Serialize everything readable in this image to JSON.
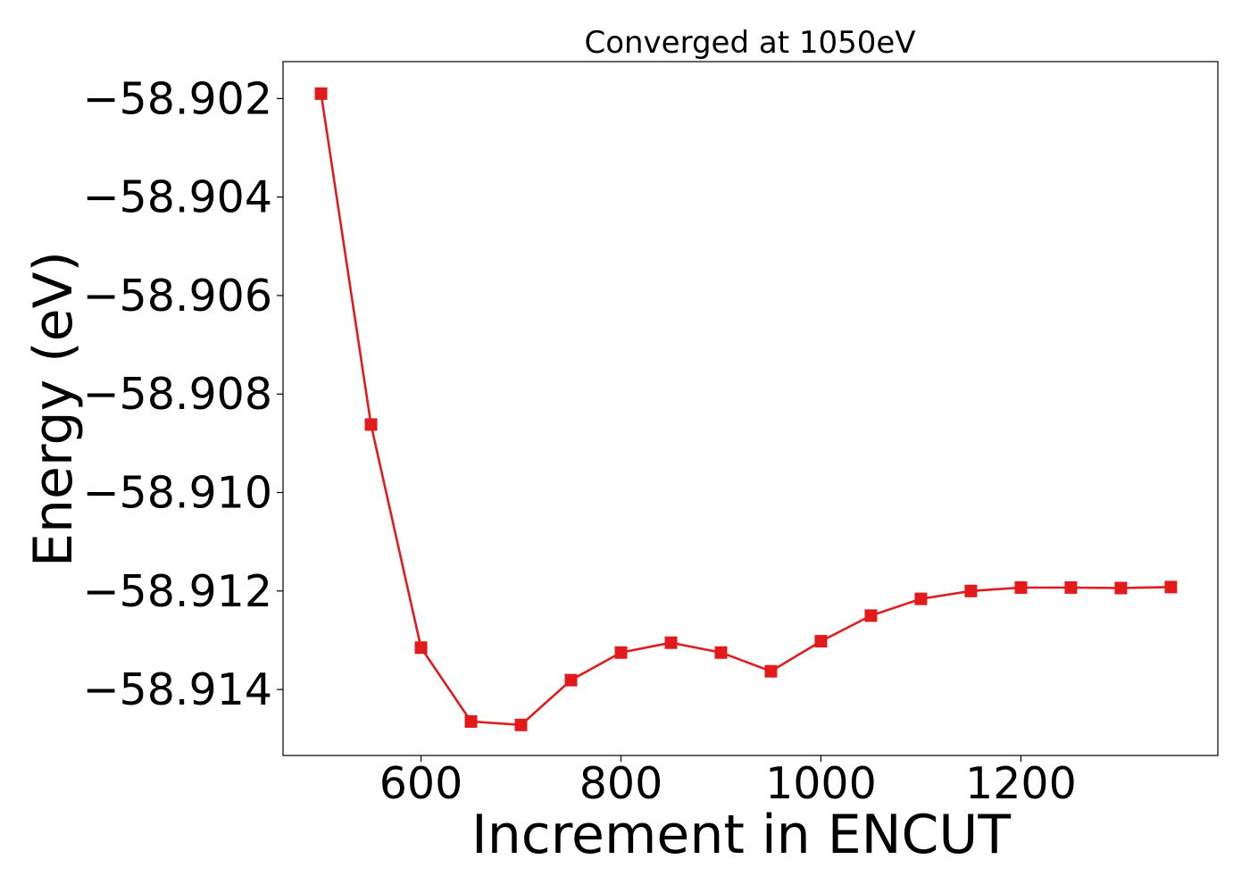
{
  "chart_data": {
    "type": "line",
    "title": "Converged at 1050eV",
    "xlabel": "Increment in ENCUT",
    "ylabel": "Energy (eV)",
    "xlim": [
      462,
      1397
    ],
    "ylim": [
      -58.91534,
      -58.90125
    ],
    "x_ticks": [
      600,
      800,
      1000,
      1200
    ],
    "x_tick_labels": [
      "600",
      "800",
      "1000",
      "1200"
    ],
    "y_ticks": [
      -58.902,
      -58.904,
      -58.906,
      -58.908,
      -58.91,
      -58.912,
      -58.914
    ],
    "y_tick_labels": [
      "−58.902",
      "−58.904",
      "−58.906",
      "−58.908",
      "−58.910",
      "−58.912",
      "−58.914"
    ],
    "grid": false,
    "series": [
      {
        "color": "#e31a1c",
        "marker": "square",
        "x": [
          500,
          550,
          600,
          650,
          700,
          750,
          800,
          850,
          900,
          950,
          1000,
          1050,
          1100,
          1150,
          1200,
          1250,
          1300,
          1350
        ],
        "y": [
          -58.9019,
          -58.90862,
          -58.91315,
          -58.91465,
          -58.91472,
          -58.91381,
          -58.91325,
          -58.91305,
          -58.91325,
          -58.91363,
          -58.91302,
          -58.9125,
          -58.91216,
          -58.912,
          -58.91193,
          -58.91193,
          -58.91194,
          -58.91192
        ]
      }
    ]
  }
}
